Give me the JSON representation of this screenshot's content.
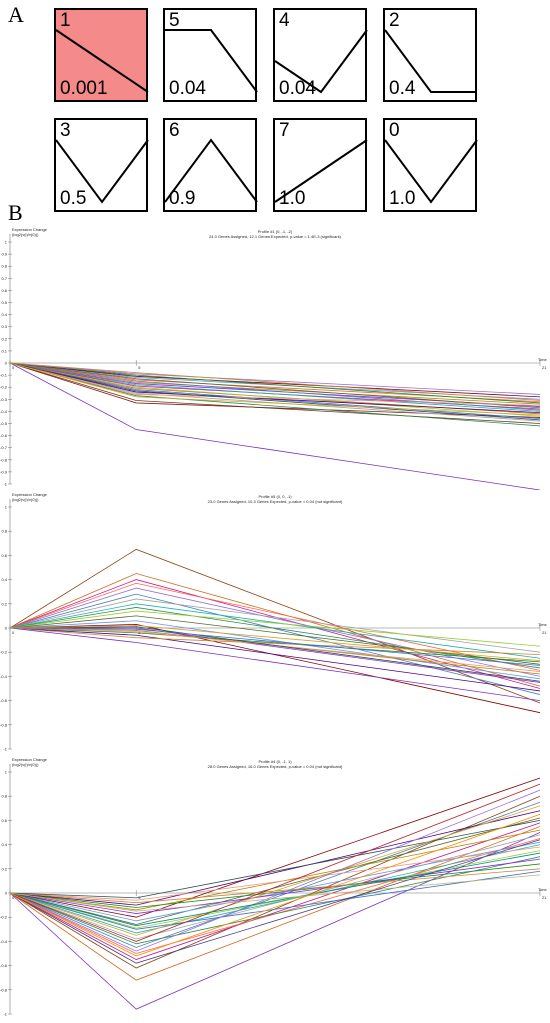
{
  "panel_a": {
    "letter": "A"
  },
  "panel_b": {
    "letter": "B"
  },
  "chart_data": [
    {
      "type": "line",
      "panel": "A",
      "profiles": [
        {
          "id": "1",
          "value": "0.001",
          "highlighted": true,
          "shape": [
            0,
            -1,
            -2
          ]
        },
        {
          "id": "5",
          "value": "0.04",
          "highlighted": false,
          "shape": [
            0,
            0,
            -1
          ]
        },
        {
          "id": "4",
          "value": "0.04",
          "highlighted": false,
          "shape": [
            0,
            -1,
            1
          ]
        },
        {
          "id": "2",
          "value": "0.4",
          "highlighted": false,
          "shape": [
            0,
            -1,
            -1
          ]
        },
        {
          "id": "3",
          "value": "0.5",
          "highlighted": false,
          "shape": [
            0,
            -1,
            0
          ]
        },
        {
          "id": "6",
          "value": "0.9",
          "highlighted": false,
          "shape": [
            0,
            1,
            0
          ]
        },
        {
          "id": "7",
          "value": "1.0",
          "highlighted": false,
          "shape": [
            0,
            0.5,
            1
          ]
        },
        {
          "id": "0",
          "value": "1.0",
          "highlighted": false,
          "shape": [
            0,
            -0.5,
            0
          ]
        }
      ],
      "highlight_color": "#f48a8a"
    },
    {
      "type": "line",
      "panel": "B",
      "title": "Profile #1 (0, -1, -2)",
      "subtitle": "24.0 Genes Assigned, 12.1 Genes Expected, p-value = 1.4E-3 (significant)",
      "ylabel": "Expression Change",
      "ylabel2": "(log2(v(i)/v(0)))",
      "xlabel": "Time",
      "x_ticks": [
        "0",
        "5",
        "21"
      ],
      "y_ticks": [
        "1",
        "0.9",
        "0.8",
        "0.7",
        "0.6",
        "0.5",
        "0.4",
        "0.3",
        "0.2",
        "0.1",
        "0",
        "-0.1",
        "-0.2",
        "-0.3",
        "-0.4",
        "-0.5",
        "-0.6",
        "-0.7",
        "-0.8",
        "-0.9",
        "-1"
      ],
      "ylim": [
        -1,
        1
      ],
      "x": [
        0,
        5,
        21
      ],
      "series": [
        {
          "color": "#7b2fbe",
          "values": [
            0,
            -0.55,
            -1.05
          ]
        },
        {
          "color": "#8b1a1a",
          "values": [
            0,
            -0.33,
            -0.45
          ]
        },
        {
          "color": "#6b3a1a",
          "values": [
            0,
            -0.31,
            -0.5
          ]
        },
        {
          "color": "#2e8b57",
          "values": [
            0,
            -0.27,
            -0.52
          ]
        },
        {
          "color": "#a0a0a0",
          "values": [
            0,
            -0.25,
            -0.48
          ]
        },
        {
          "color": "#3a6fd8",
          "values": [
            0,
            -0.22,
            -0.46
          ]
        },
        {
          "color": "#d2691e",
          "values": [
            0,
            -0.21,
            -0.42
          ]
        },
        {
          "color": "#9acd32",
          "values": [
            0,
            -0.2,
            -0.44
          ]
        },
        {
          "color": "#c71585",
          "values": [
            0,
            -0.19,
            -0.38
          ]
        },
        {
          "color": "#20b2aa",
          "values": [
            0,
            -0.18,
            -0.4
          ]
        },
        {
          "color": "#8a2be2",
          "values": [
            0,
            -0.17,
            -0.36
          ]
        },
        {
          "color": "#b8860b",
          "values": [
            0,
            -0.16,
            -0.34
          ]
        },
        {
          "color": "#4682b4",
          "values": [
            0,
            -0.15,
            -0.39
          ]
        },
        {
          "color": "#ff6347",
          "values": [
            0,
            -0.14,
            -0.32
          ]
        },
        {
          "color": "#556b2f",
          "values": [
            0,
            -0.13,
            -0.37
          ]
        },
        {
          "color": "#6495ed",
          "values": [
            0,
            -0.12,
            -0.3
          ]
        },
        {
          "color": "#800000",
          "values": [
            0,
            -0.11,
            -0.28
          ]
        },
        {
          "color": "#228b22",
          "values": [
            0,
            -0.1,
            -0.33
          ]
        },
        {
          "color": "#9370db",
          "values": [
            0,
            -0.09,
            -0.26
          ]
        },
        {
          "color": "#cd853f",
          "values": [
            0,
            -0.08,
            -0.31
          ]
        },
        {
          "color": "#4b0082",
          "values": [
            0,
            -0.24,
            -0.41
          ]
        },
        {
          "color": "#e9967a",
          "values": [
            0,
            -0.26,
            -0.35
          ]
        },
        {
          "color": "#2f4f4f",
          "values": [
            0,
            -0.23,
            -0.47
          ]
        },
        {
          "color": "#daa520",
          "values": [
            0,
            -0.28,
            -0.43
          ]
        }
      ]
    },
    {
      "type": "line",
      "panel": "B",
      "title": "Profile #5 (0, 0, -1)",
      "subtitle": "23.0 Genes Assigned, 10.3 Genes Expected, p-value = 0.04 (not significant)",
      "ylabel": "Expression Change",
      "ylabel2": "(log2(v(i)/v(0)))",
      "xlabel": "Time",
      "x_ticks": [
        "0",
        "5",
        "21"
      ],
      "y_ticks": [
        "1",
        "0.8",
        "0.6",
        "0.4",
        "0.2",
        "0",
        "-0.2",
        "-0.4",
        "-0.6",
        "-0.8",
        "-1"
      ],
      "ylim": [
        -1,
        1
      ],
      "x": [
        0,
        5,
        21
      ],
      "series": [
        {
          "color": "#8b4513",
          "values": [
            0,
            0.65,
            -0.62
          ]
        },
        {
          "color": "#d2691e",
          "values": [
            0,
            0.45,
            -0.48
          ]
        },
        {
          "color": "#c71585",
          "values": [
            0,
            0.4,
            -0.5
          ]
        },
        {
          "color": "#ff6347",
          "values": [
            0,
            0.37,
            -0.35
          ]
        },
        {
          "color": "#9370db",
          "values": [
            0,
            0.33,
            -0.4
          ]
        },
        {
          "color": "#4682b4",
          "values": [
            0,
            0.28,
            -0.55
          ]
        },
        {
          "color": "#a0a0a0",
          "values": [
            0,
            0.24,
            -0.2
          ]
        },
        {
          "color": "#20b2aa",
          "values": [
            0,
            0.2,
            -0.25
          ]
        },
        {
          "color": "#2e8b57",
          "values": [
            0,
            0.17,
            -0.33
          ]
        },
        {
          "color": "#9acd32",
          "values": [
            0,
            0.14,
            -0.15
          ]
        },
        {
          "color": "#556b2f",
          "values": [
            0,
            0.1,
            -0.3
          ]
        },
        {
          "color": "#6495ed",
          "values": [
            0,
            0.06,
            -0.42
          ]
        },
        {
          "color": "#800000",
          "values": [
            0,
            0.03,
            -0.7
          ]
        },
        {
          "color": "#8a2be2",
          "values": [
            0,
            0.0,
            -0.45
          ]
        },
        {
          "color": "#b8860b",
          "values": [
            0,
            -0.02,
            -0.38
          ]
        },
        {
          "color": "#228b22",
          "values": [
            0,
            -0.04,
            -0.28
          ]
        },
        {
          "color": "#4b0082",
          "values": [
            0,
            -0.06,
            -0.52
          ]
        },
        {
          "color": "#cd853f",
          "values": [
            0,
            -0.08,
            -0.22
          ]
        },
        {
          "color": "#7b2fbe",
          "values": [
            0,
            -0.12,
            -0.6
          ]
        },
        {
          "color": "#e9967a",
          "values": [
            0,
            -0.03,
            -0.36
          ]
        },
        {
          "color": "#2f4f4f",
          "values": [
            0,
            0.01,
            -0.44
          ]
        },
        {
          "color": "#3a6fd8",
          "values": [
            0,
            -0.01,
            -0.31
          ]
        },
        {
          "color": "#daa520",
          "values": [
            0,
            0.02,
            -0.27
          ]
        }
      ]
    },
    {
      "type": "line",
      "panel": "B",
      "title": "Profile #4 (0, -1, 1)",
      "subtitle": "28.0 Genes Assigned, 16.0 Genes Expected, p-value = 0.04 (not significant)",
      "ylabel": "Expression Change",
      "ylabel2": "(log2(v(i)/v(0)))",
      "xlabel": "Time",
      "x_ticks": [
        "0",
        "5",
        "21"
      ],
      "y_ticks": [
        "1",
        "0.8",
        "0.6",
        "0.4",
        "0.2",
        "0",
        "-0.2",
        "-0.4",
        "-0.6",
        "-0.8",
        "-1"
      ],
      "ylim": [
        -1,
        1
      ],
      "x": [
        0,
        5,
        21
      ],
      "series": [
        {
          "color": "#7b2fbe",
          "values": [
            0,
            -0.96,
            0.5
          ]
        },
        {
          "color": "#d2691e",
          "values": [
            0,
            -0.72,
            0.55
          ]
        },
        {
          "color": "#8b4513",
          "values": [
            0,
            -0.62,
            0.8
          ]
        },
        {
          "color": "#c71585",
          "values": [
            0,
            -0.55,
            0.58
          ]
        },
        {
          "color": "#ff6347",
          "values": [
            0,
            -0.5,
            0.45
          ]
        },
        {
          "color": "#4682b4",
          "values": [
            0,
            -0.45,
            0.75
          ]
        },
        {
          "color": "#2e8b57",
          "values": [
            0,
            -0.42,
            0.3
          ]
        },
        {
          "color": "#a0a0a0",
          "values": [
            0,
            -0.38,
            0.48
          ]
        },
        {
          "color": "#20b2aa",
          "values": [
            0,
            -0.33,
            0.4
          ]
        },
        {
          "color": "#9acd32",
          "values": [
            0,
            -0.29,
            0.35
          ]
        },
        {
          "color": "#556b2f",
          "values": [
            0,
            -0.26,
            0.62
          ]
        },
        {
          "color": "#6495ed",
          "values": [
            0,
            -0.23,
            0.42
          ]
        },
        {
          "color": "#800000",
          "values": [
            0,
            -0.2,
            0.95
          ]
        },
        {
          "color": "#8a2be2",
          "values": [
            0,
            -0.17,
            0.28
          ]
        },
        {
          "color": "#b8860b",
          "values": [
            0,
            -0.14,
            0.52
          ]
        },
        {
          "color": "#228b22",
          "values": [
            0,
            -0.12,
            0.24
          ]
        },
        {
          "color": "#4b0082",
          "values": [
            0,
            -0.1,
            0.68
          ]
        },
        {
          "color": "#cd853f",
          "values": [
            0,
            -0.08,
            0.2
          ]
        },
        {
          "color": "#e9967a",
          "values": [
            0,
            -0.06,
            0.38
          ]
        },
        {
          "color": "#2f4f4f",
          "values": [
            0,
            -0.04,
            0.6
          ]
        },
        {
          "color": "#3a6fd8",
          "values": [
            0,
            -0.3,
            0.18
          ]
        },
        {
          "color": "#daa520",
          "values": [
            0,
            -0.35,
            0.72
          ]
        },
        {
          "color": "#9370db",
          "values": [
            0,
            -0.48,
            0.85
          ]
        },
        {
          "color": "#b22222",
          "values": [
            0,
            -0.4,
            0.9
          ]
        },
        {
          "color": "#008b8b",
          "values": [
            0,
            -0.27,
            0.33
          ]
        },
        {
          "color": "#bdb76b",
          "values": [
            0,
            -0.15,
            0.15
          ]
        },
        {
          "color": "#483d8b",
          "values": [
            0,
            -0.58,
            0.44
          ]
        },
        {
          "color": "#ff8c00",
          "values": [
            0,
            -0.52,
            0.65
          ]
        }
      ]
    }
  ]
}
